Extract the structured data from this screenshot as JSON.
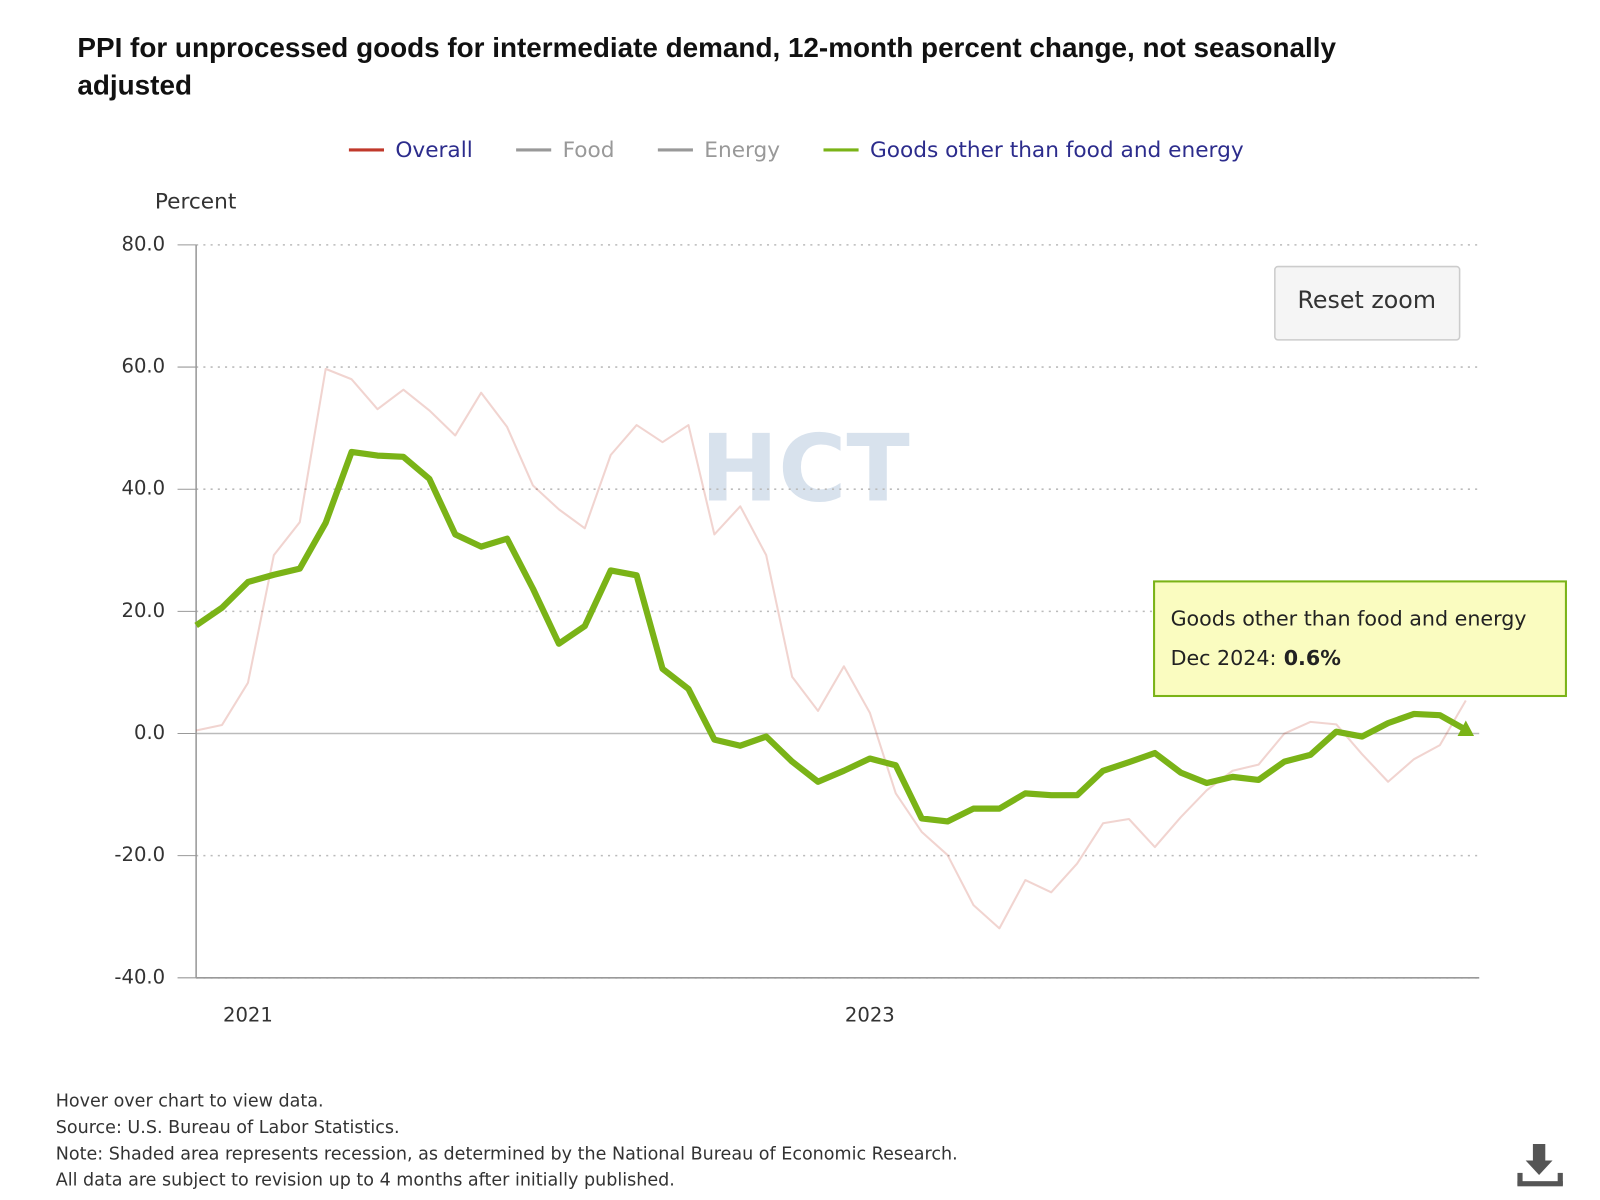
{
  "chart_data": {
    "type": "line",
    "title": [
      "PPI for unprocessed goods for intermediate demand, 12-month percent change, not seasonally",
      "adjusted"
    ],
    "y_label": "Percent",
    "x": [
      "Nov 2020",
      "Dec 2020",
      "Jan 2021",
      "Feb 2021",
      "Mar 2021",
      "Apr 2021",
      "May 2021",
      "Jun 2021",
      "Jul 2021",
      "Aug 2021",
      "Sep 2021",
      "Oct 2021",
      "Nov 2021",
      "Dec 2021",
      "Jan 2022",
      "Feb 2022",
      "Mar 2022",
      "Apr 2022",
      "May 2022",
      "Jun 2022",
      "Jul 2022",
      "Aug 2022",
      "Sep 2022",
      "Oct 2022",
      "Nov 2022",
      "Dec 2022",
      "Jan 2023",
      "Feb 2023",
      "Mar 2023",
      "Apr 2023",
      "May 2023",
      "Jun 2023",
      "Jul 2023",
      "Aug 2023",
      "Sep 2023",
      "Oct 2023",
      "Nov 2023",
      "Dec 2023",
      "Jan 2024",
      "Feb 2024",
      "Mar 2024",
      "Apr 2024",
      "May 2024",
      "Jun 2024",
      "Jul 2024",
      "Aug 2024",
      "Sep 2024",
      "Oct 2024",
      "Nov 2024",
      "Dec 2024"
    ],
    "xticks": [
      {
        "value": "Jan 2021",
        "label": "2021"
      },
      {
        "value": "Jan 2023",
        "label": "2023"
      }
    ],
    "ylim": [
      -40,
      80
    ],
    "yticks": [
      {
        "value": 80,
        "label": "80.0"
      },
      {
        "value": 60,
        "label": "60.0"
      },
      {
        "value": 40,
        "label": "40.0"
      },
      {
        "value": 20,
        "label": "20.0"
      },
      {
        "value": 0,
        "label": "0.0"
      },
      {
        "value": -20,
        "label": "-20.0"
      },
      {
        "value": -40,
        "label": "-40.0"
      }
    ],
    "grid": true,
    "series": [
      {
        "name": "Overall",
        "color": "#c0392b",
        "visible": true,
        "dimmed": true,
        "values": [
          0.5,
          1.4,
          8.3,
          29.2,
          34.6,
          59.7,
          58.0,
          53.1,
          56.3,
          52.9,
          48.8,
          55.8,
          50.2,
          40.6,
          36.7,
          33.6,
          45.6,
          50.5,
          47.7,
          50.5,
          32.6,
          37.2,
          29.2,
          9.3,
          3.7,
          11.0,
          3.4,
          -9.8,
          -16.1,
          -19.9,
          -28.1,
          -31.9,
          -24.0,
          -26.0,
          -21.3,
          -14.7,
          -14.0,
          -18.6,
          -13.7,
          -9.3,
          -6.1,
          -5.1,
          0,
          1.9,
          1.5,
          -3.4,
          -7.9,
          -4.2,
          -1.9,
          5.4
        ]
      },
      {
        "name": "Food",
        "color": "#999999",
        "visible": false,
        "dimmed": false,
        "values": [
          null,
          null,
          null,
          null,
          null,
          null,
          null,
          null,
          null,
          null,
          null,
          null,
          null,
          null,
          null,
          null,
          null,
          null,
          null,
          null,
          null,
          null,
          null,
          null,
          null,
          null,
          null,
          null,
          null,
          null,
          null,
          null,
          null,
          null,
          null,
          null,
          null,
          null,
          null,
          null,
          null,
          null,
          null,
          null,
          null,
          null,
          null,
          null,
          null,
          null
        ]
      },
      {
        "name": "Energy",
        "color": "#999999",
        "visible": false,
        "dimmed": false,
        "values": [
          null,
          null,
          null,
          null,
          null,
          null,
          null,
          null,
          null,
          null,
          null,
          null,
          null,
          null,
          null,
          null,
          null,
          null,
          null,
          null,
          null,
          null,
          null,
          null,
          null,
          null,
          null,
          null,
          null,
          null,
          null,
          null,
          null,
          null,
          null,
          null,
          null,
          null,
          null,
          null,
          null,
          null,
          null,
          null,
          null,
          null,
          null,
          null,
          null,
          null
        ]
      },
      {
        "name": "Goods other than food and energy",
        "color": "#7ab317",
        "visible": true,
        "dimmed": false,
        "values": [
          17.7,
          20.6,
          24.8,
          26.0,
          27.0,
          34.5,
          46.1,
          45.5,
          45.3,
          41.7,
          32.6,
          30.6,
          31.9,
          23.7,
          14.7,
          17.6,
          26.7,
          25.9,
          10.6,
          7.3,
          -1.0,
          -2.0,
          -0.5,
          -4.6,
          -7.9,
          -6.1,
          -4.1,
          -5.2,
          -13.9,
          -14.4,
          -12.3,
          -12.3,
          -9.8,
          -10.1,
          -10.1,
          -6.1,
          -4.7,
          -3.2,
          -6.4,
          -8.1,
          -7.1,
          -7.6,
          -4.6,
          -3.5,
          0.3,
          -0.5,
          1.7,
          3.2,
          3.0,
          0.6
        ]
      }
    ],
    "tooltip": {
      "series": 3,
      "index": 49,
      "point_label": "Dec 2024:",
      "value_label": "0.6%"
    },
    "reset_button": "Reset zoom",
    "watermark": "HCT",
    "footnotes": [
      "Hover over chart to view data.",
      "Source: U.S. Bureau of Labor Statistics.",
      "Note: Shaded area represents recession, as determined by the National Bureau of Economic Research.",
      "All data are subject to revision up to 4 months after initially published."
    ]
  }
}
